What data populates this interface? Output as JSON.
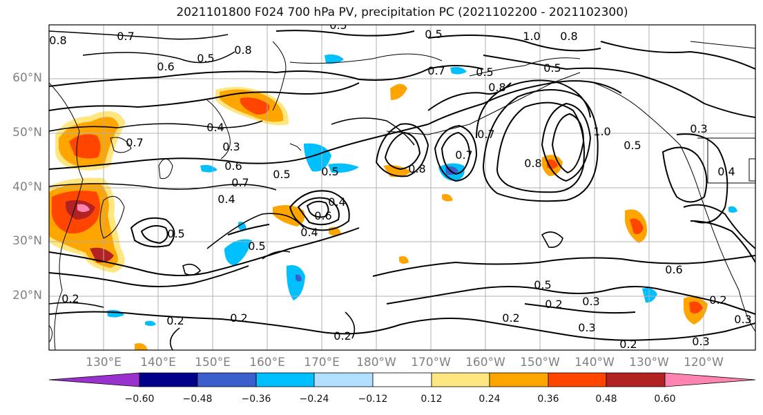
{
  "title": "2021101800 F024 700 hPa PV, precipitation PC (2021102200 - 2021102300)",
  "lat_labels": [
    "60°N",
    "50°N",
    "40°N",
    "30°N",
    "20°N"
  ],
  "lon_labels": [
    "130°E",
    "140°E",
    "150°E",
    "160°E",
    "170°E",
    "180°W",
    "170°W",
    "160°W",
    "150°W",
    "140°W",
    "130°W",
    "120°W"
  ],
  "colorbar": {
    "ticks": [
      "−0.60",
      "−0.48",
      "−0.36",
      "−0.24",
      "−0.12",
      "0.12",
      "0.24",
      "0.36",
      "0.48",
      "0.60"
    ],
    "colors": [
      "#9932cc",
      "#00008b",
      "#3a5fcd",
      "#00bfff",
      "#b2dfff",
      "#ffffff",
      "#ffe680",
      "#ffa500",
      "#ff4500",
      "#b22222",
      "#ff85b0"
    ]
  },
  "contour_labels": [
    "0.8",
    "0.7",
    "0.5",
    "0.6",
    "0.5",
    "0.8",
    "0.5",
    "0.5",
    "0.8",
    "1.0",
    "0.8",
    "0.7",
    "0.5",
    "0.7",
    "0.4",
    "0.3",
    "0.6",
    "0.7",
    "0.5",
    "0.4",
    "0.4",
    "0.5",
    "0.6",
    "0.5",
    "0.4",
    "0.5",
    "0.8",
    "0.7",
    "1.0",
    "0.5",
    "0.8",
    "0.7",
    "0.6",
    "0.5",
    "0.3",
    "0.4",
    "0.3",
    "0.2",
    "0.2",
    "0.2",
    "0.2",
    "0.2",
    "0.2",
    "0.2",
    "0.3",
    "0.3",
    "0.2",
    "0.3"
  ]
}
